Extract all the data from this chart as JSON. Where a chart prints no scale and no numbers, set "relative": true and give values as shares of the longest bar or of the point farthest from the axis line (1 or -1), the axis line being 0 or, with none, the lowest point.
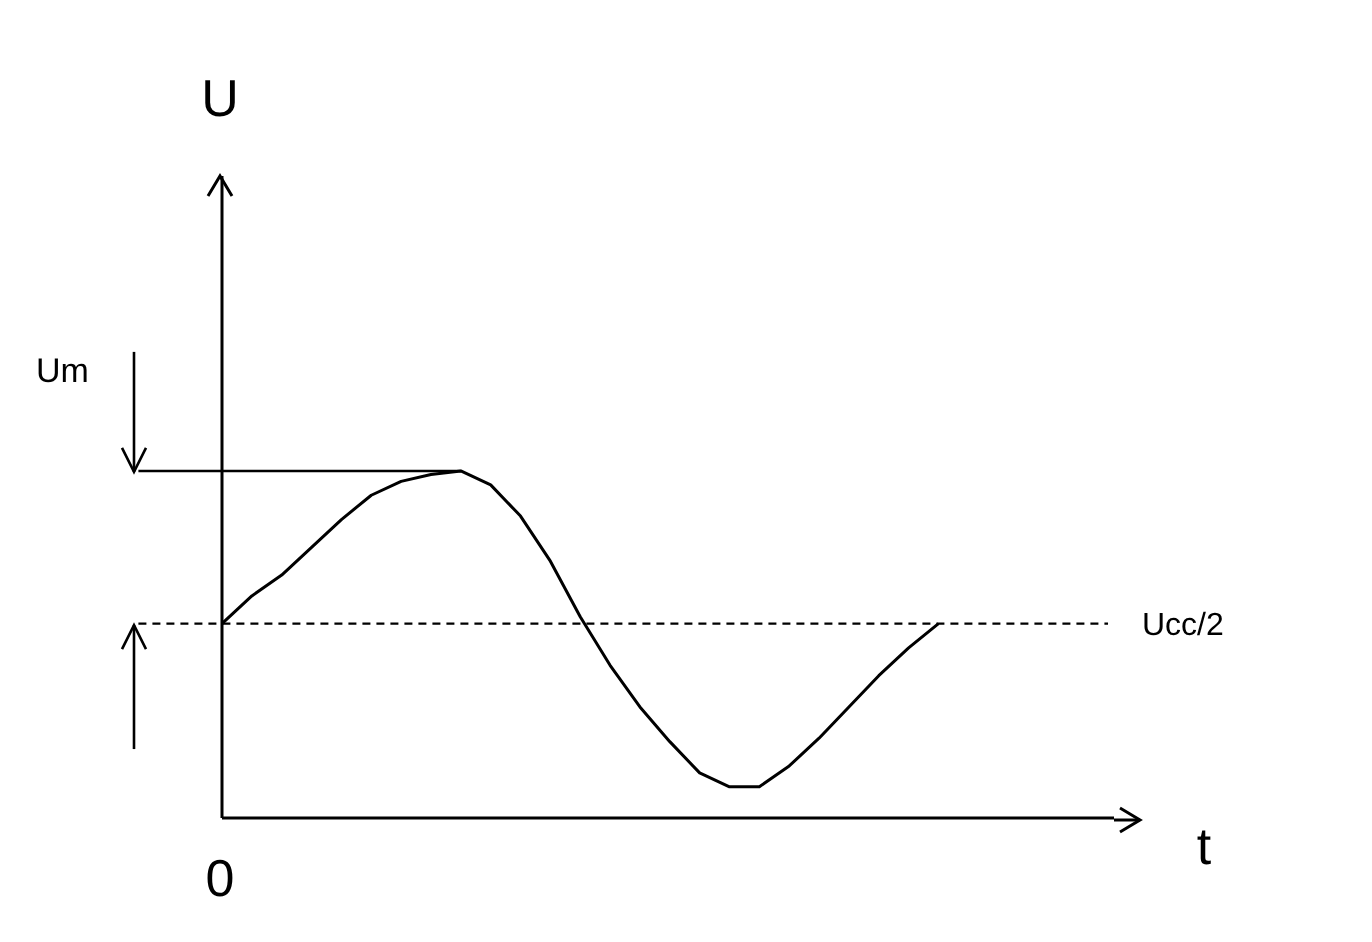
{
  "chart_data": {
    "type": "line",
    "relative": true,
    "xlabel": "t",
    "categories": [
      null,
      null,
      null,
      null,
      null,
      null,
      null,
      null,
      null,
      null,
      null,
      null,
      null,
      null,
      null,
      null,
      null,
      null,
      null,
      null,
      null,
      null,
      null,
      null,
      null
    ],
    "series": [
      {
        "color": "#000000",
        "values": [
          0.56,
          0.64,
          0.7,
          0.78,
          0.86,
          0.93,
          0.97,
          0.99,
          1.0,
          0.96,
          0.87,
          0.74,
          0.58,
          0.44,
          0.32,
          0.22,
          0.13,
          0.09,
          0.09,
          0.15,
          0.23,
          0.32,
          0.41,
          0.49,
          0.56
        ]
      }
    ],
    "ref_lines": [
      {
        "axis": "y",
        "value": 1,
        "label": null,
        "line_style": "solid",
        "color": "#000000"
      },
      {
        "axis": "y",
        "value": 0.56,
        "label": "Ucc/2",
        "line_style": "dashed",
        "color": "#000000"
      }
    ],
    "annotations": [
      "U",
      "Um",
      "0"
    ],
    "marker": "none",
    "line_style": "solid",
    "grid": false,
    "legend": false
  }
}
